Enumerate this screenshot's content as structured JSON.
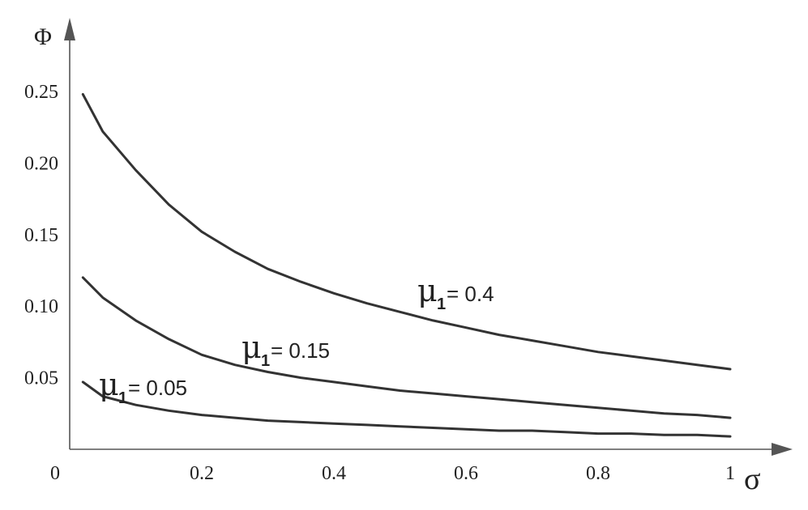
{
  "chart_data": {
    "type": "line",
    "xlabel": "σ",
    "ylabel": "Φ",
    "xlim": [
      0,
      1
    ],
    "ylim": [
      0,
      0.25
    ],
    "x_ticks": [
      0,
      0.2,
      0.4,
      0.6,
      0.8,
      1
    ],
    "x_tick_labels": [
      "0",
      "0.2",
      "0.4",
      "0.6",
      "0.8",
      "1"
    ],
    "y_ticks": [
      0.05,
      0.1,
      0.15,
      0.2,
      0.25
    ],
    "y_tick_labels": [
      "0.05",
      "0.10",
      "0.15",
      "0.20",
      "0.25"
    ],
    "grid": false,
    "x": [
      0.02,
      0.05,
      0.1,
      0.15,
      0.2,
      0.25,
      0.3,
      0.35,
      0.4,
      0.45,
      0.5,
      0.55,
      0.6,
      0.65,
      0.7,
      0.75,
      0.8,
      0.85,
      0.9,
      0.95,
      1.0
    ],
    "series": [
      {
        "name_prefix": "μ",
        "name_sub": "1",
        "name_value": " = 0.4",
        "values": [
          0.248,
          0.222,
          0.195,
          0.171,
          0.152,
          0.138,
          0.126,
          0.117,
          0.109,
          0.102,
          0.096,
          0.09,
          0.085,
          0.08,
          0.076,
          0.072,
          0.068,
          0.065,
          0.062,
          0.059,
          0.056
        ]
      },
      {
        "name_prefix": "μ",
        "name_sub": "1",
        "name_value": " = 0.15",
        "values": [
          0.12,
          0.106,
          0.09,
          0.077,
          0.066,
          0.059,
          0.054,
          0.05,
          0.047,
          0.044,
          0.041,
          0.039,
          0.037,
          0.035,
          0.033,
          0.031,
          0.029,
          0.027,
          0.025,
          0.024,
          0.022
        ]
      },
      {
        "name_prefix": "μ",
        "name_sub": "1",
        "name_value": " = 0.05",
        "values": [
          0.047,
          0.037,
          0.031,
          0.027,
          0.024,
          0.022,
          0.02,
          0.019,
          0.018,
          0.017,
          0.016,
          0.015,
          0.014,
          0.013,
          0.013,
          0.012,
          0.011,
          0.011,
          0.01,
          0.01,
          0.009
        ]
      }
    ],
    "line_color": "#333333"
  }
}
